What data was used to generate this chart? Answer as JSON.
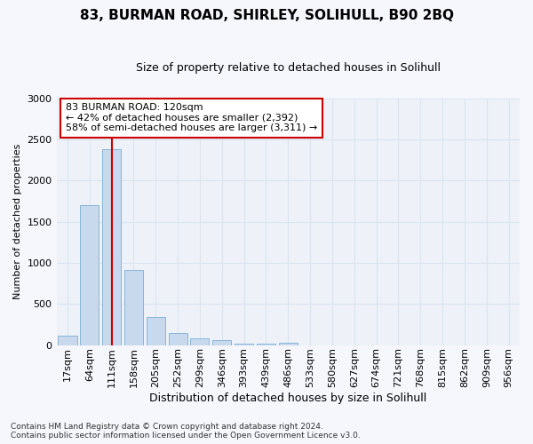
{
  "title": "83, BURMAN ROAD, SHIRLEY, SOLIHULL, B90 2BQ",
  "subtitle": "Size of property relative to detached houses in Solihull",
  "xlabel": "Distribution of detached houses by size in Solihull",
  "ylabel": "Number of detached properties",
  "bar_values": [
    110,
    1700,
    2380,
    910,
    340,
    150,
    80,
    55,
    15,
    15,
    30,
    0,
    0,
    0,
    0,
    0,
    0,
    0,
    0,
    0,
    0
  ],
  "categories": [
    "17sqm",
    "64sqm",
    "111sqm",
    "158sqm",
    "205sqm",
    "252sqm",
    "299sqm",
    "346sqm",
    "393sqm",
    "439sqm",
    "486sqm",
    "533sqm",
    "580sqm",
    "627sqm",
    "674sqm",
    "721sqm",
    "768sqm",
    "815sqm",
    "862sqm",
    "909sqm",
    "956sqm"
  ],
  "bar_color": "#c8d9ee",
  "bar_edge_color": "#7aafd4",
  "vline_color": "#cc0000",
  "vline_x_index": 2,
  "annotation_text": "83 BURMAN ROAD: 120sqm\n← 42% of detached houses are smaller (2,392)\n58% of semi-detached houses are larger (3,311) →",
  "annotation_box_facecolor": "#ffffff",
  "annotation_box_edgecolor": "#cc0000",
  "ylim": [
    0,
    3000
  ],
  "yticks": [
    0,
    500,
    1000,
    1500,
    2000,
    2500,
    3000
  ],
  "footer_line1": "Contains HM Land Registry data © Crown copyright and database right 2024.",
  "footer_line2": "Contains public sector information licensed under the Open Government Licence v3.0.",
  "figure_bg": "#f5f7fc",
  "axes_bg": "#eef2f8",
  "grid_color": "#d8e4f0",
  "title_fontsize": 11,
  "subtitle_fontsize": 9,
  "xlabel_fontsize": 9,
  "ylabel_fontsize": 8,
  "tick_fontsize": 8,
  "footer_fontsize": 6.5,
  "ann_fontsize": 8
}
